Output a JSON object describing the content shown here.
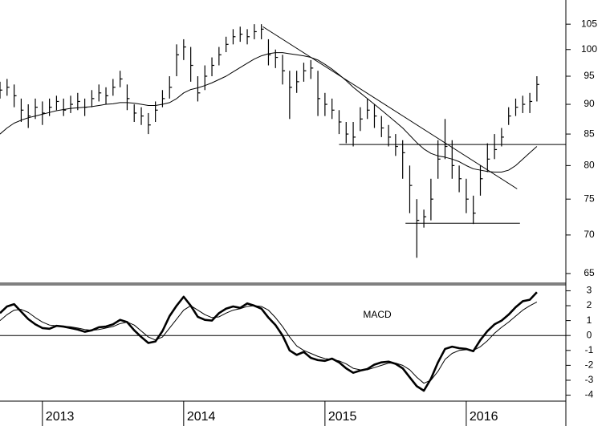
{
  "chart_data": [
    {
      "type": "ohlc",
      "ylog": true,
      "color": "#000000",
      "xlim": [
        2012.7,
        2016.705
      ],
      "ylim": [
        63.8,
        110
      ],
      "yticks": [
        65,
        70,
        75,
        80,
        85,
        90,
        95,
        100,
        105
      ],
      "x": [
        2012.7,
        2012.75,
        2012.8,
        2012.85,
        2012.9,
        2012.95,
        2013.0,
        2013.05,
        2013.1,
        2013.15,
        2013.2,
        2013.25,
        2013.3,
        2013.35,
        2013.4,
        2013.45,
        2013.5,
        2013.55,
        2013.6,
        2013.65,
        2013.7,
        2013.75,
        2013.8,
        2013.85,
        2013.9,
        2013.95,
        2014.0,
        2014.05,
        2014.1,
        2014.15,
        2014.2,
        2014.25,
        2014.3,
        2014.35,
        2014.4,
        2014.45,
        2014.5,
        2014.55,
        2014.6,
        2014.65,
        2014.7,
        2014.75,
        2014.8,
        2014.85,
        2014.9,
        2014.95,
        2015.0,
        2015.05,
        2015.1,
        2015.15,
        2015.2,
        2015.25,
        2015.3,
        2015.35,
        2015.4,
        2015.45,
        2015.5,
        2015.55,
        2015.6,
        2015.65,
        2015.7,
        2015.75,
        2015.8,
        2015.85,
        2015.9,
        2015.95,
        2016.0,
        2016.05,
        2016.1,
        2016.15,
        2016.2,
        2016.25,
        2016.3,
        2016.35,
        2016.4,
        2016.45,
        2016.5
      ],
      "high": [
        94,
        94.5,
        93.5,
        91,
        90,
        91,
        90.5,
        91,
        91.5,
        91,
        91.5,
        92,
        91,
        92.5,
        93.5,
        93,
        94.5,
        96,
        93.5,
        90,
        89.5,
        88.5,
        90.5,
        92.5,
        95,
        101,
        102,
        100.5,
        95,
        97,
        98.5,
        100.5,
        102.5,
        104,
        104.5,
        104,
        105,
        105,
        102,
        100,
        99,
        96,
        96,
        97.5,
        98,
        96,
        92,
        91,
        89,
        87,
        87,
        89.5,
        91,
        90,
        88,
        86.5,
        85,
        84,
        80,
        75,
        73.5,
        78,
        84,
        87.5,
        84,
        80,
        78,
        75.5,
        80,
        83.5,
        85,
        86,
        89.5,
        91,
        91.5,
        92,
        95
      ],
      "low": [
        91,
        91.5,
        89.5,
        87,
        86,
        87.5,
        86.5,
        88,
        89,
        88,
        88.5,
        89,
        88,
        89.5,
        90.5,
        90,
        91.5,
        93,
        89,
        87,
        86.5,
        85,
        87,
        89.5,
        91,
        95,
        98,
        94,
        90.5,
        92.5,
        95,
        97,
        99.5,
        101,
        101.5,
        101,
        102,
        102,
        97,
        96.5,
        93.5,
        87.5,
        92,
        94,
        94.5,
        88,
        88,
        87.5,
        85,
        83.5,
        83,
        85.5,
        87.5,
        86,
        84.5,
        83,
        81.5,
        78,
        73,
        67,
        71,
        72,
        78,
        81,
        78,
        76,
        73,
        71.5,
        75.5,
        79,
        81,
        83,
        86.5,
        88,
        88.5,
        88.5,
        90.5
      ],
      "close": [
        92.5,
        93,
        91.5,
        89,
        88,
        89.5,
        88.5,
        89.5,
        90.5,
        89,
        90,
        90.5,
        89.5,
        91,
        92,
        91.5,
        93,
        94.5,
        91,
        88.5,
        88,
        86.5,
        89,
        91,
        93,
        99,
        100.5,
        97,
        92,
        95,
        97,
        99,
        101,
        102.5,
        103,
        102.5,
        103.5,
        104,
        99,
        98.5,
        96,
        93,
        94,
        96,
        96.5,
        91,
        90,
        89,
        87,
        85,
        84.5,
        87.5,
        89,
        88,
        86,
        84.5,
        83,
        82,
        77,
        72,
        72.5,
        75,
        81,
        83,
        80,
        78,
        75,
        73,
        78,
        81,
        82.5,
        84.5,
        88,
        89.5,
        90,
        90.5,
        93.5
      ],
      "moving_average": [
        85,
        86,
        86.8,
        87.3,
        87.7,
        88,
        88.3,
        88.6,
        88.9,
        89.1,
        89.3,
        89.4,
        89.5,
        89.6,
        89.8,
        90,
        90.1,
        90.3,
        90.3,
        90.2,
        90,
        89.8,
        89.8,
        90,
        90.3,
        91,
        92,
        92.6,
        92.9,
        93.3,
        93.8,
        94.4,
        95,
        95.8,
        96.6,
        97.4,
        98.2,
        98.8,
        99.2,
        99.4,
        99.4,
        99.2,
        99,
        98.8,
        98.5,
        98,
        97.2,
        96.3,
        95.3,
        94.2,
        93,
        92,
        91,
        90,
        89,
        88,
        87,
        86,
        84.8,
        83.6,
        82.6,
        81.9,
        81.5,
        81.3,
        81,
        80.6,
        80,
        79.5,
        79.3,
        79.1,
        79,
        79,
        79.3,
        80,
        81,
        82,
        83
      ],
      "lines": [
        {
          "x": [
            2014.56,
            2016.36
          ],
          "y": [
            104.5,
            76.5
          ]
        },
        {
          "x": [
            2015.1,
            2016.705
          ],
          "y": [
            83.3,
            83.3
          ]
        },
        {
          "x": [
            2015.57,
            2016.38
          ],
          "y": [
            71.6,
            71.6
          ]
        }
      ]
    },
    {
      "type": "line",
      "annotation": "MACD",
      "xlim": [
        2012.7,
        2016.705
      ],
      "ylim": [
        -4.4,
        3.4
      ],
      "yticks": [
        -4,
        -3,
        -2,
        -1,
        0,
        1,
        2,
        3
      ],
      "reference_line": 0,
      "xticks": [
        2013,
        2014,
        2015,
        2016
      ],
      "x": [
        2012.7,
        2012.75,
        2012.8,
        2012.85,
        2012.9,
        2012.95,
        2013.0,
        2013.05,
        2013.1,
        2013.15,
        2013.2,
        2013.25,
        2013.3,
        2013.35,
        2013.4,
        2013.45,
        2013.5,
        2013.55,
        2013.6,
        2013.65,
        2013.7,
        2013.75,
        2013.8,
        2013.85,
        2013.9,
        2013.95,
        2014.0,
        2014.05,
        2014.1,
        2014.15,
        2014.2,
        2014.25,
        2014.3,
        2014.35,
        2014.4,
        2014.45,
        2014.5,
        2014.55,
        2014.6,
        2014.65,
        2014.7,
        2014.75,
        2014.8,
        2014.85,
        2014.9,
        2014.95,
        2015.0,
        2015.05,
        2015.1,
        2015.15,
        2015.2,
        2015.25,
        2015.3,
        2015.35,
        2015.4,
        2015.45,
        2015.5,
        2015.55,
        2015.6,
        2015.65,
        2015.7,
        2015.75,
        2015.8,
        2015.85,
        2015.9,
        2015.95,
        2016.0,
        2016.05,
        2016.1,
        2016.15,
        2016.2,
        2016.25,
        2016.3,
        2016.35,
        2016.4,
        2016.45,
        2016.5
      ],
      "macd": [
        1.5,
        1.95,
        2.1,
        1.6,
        1.1,
        0.75,
        0.5,
        0.45,
        0.65,
        0.6,
        0.5,
        0.4,
        0.25,
        0.35,
        0.55,
        0.6,
        0.75,
        1.05,
        0.9,
        0.35,
        -0.1,
        -0.5,
        -0.4,
        0.3,
        1.3,
        2.0,
        2.6,
        2.0,
        1.25,
        1.05,
        1.0,
        1.5,
        1.8,
        1.95,
        1.85,
        2.15,
        2.0,
        1.8,
        1.2,
        0.7,
        0.0,
        -1.0,
        -1.3,
        -1.1,
        -1.5,
        -1.65,
        -1.7,
        -1.55,
        -1.8,
        -2.2,
        -2.5,
        -2.35,
        -2.25,
        -1.95,
        -1.8,
        -1.75,
        -1.9,
        -2.2,
        -2.8,
        -3.4,
        -3.7,
        -2.9,
        -1.8,
        -0.9,
        -0.75,
        -0.85,
        -0.9,
        -1.05,
        -0.3,
        0.3,
        0.75,
        1.0,
        1.4,
        1.9,
        2.3,
        2.4,
        2.9
      ],
      "signal": [
        1.0,
        1.4,
        1.7,
        1.75,
        1.55,
        1.2,
        0.9,
        0.7,
        0.65,
        0.62,
        0.58,
        0.5,
        0.4,
        0.35,
        0.4,
        0.5,
        0.6,
        0.8,
        0.9,
        0.7,
        0.3,
        -0.1,
        -0.3,
        -0.1,
        0.5,
        1.1,
        1.7,
        2.0,
        1.7,
        1.4,
        1.2,
        1.25,
        1.5,
        1.7,
        1.8,
        1.95,
        2.0,
        1.95,
        1.7,
        1.2,
        0.6,
        -0.1,
        -0.7,
        -1.0,
        -1.2,
        -1.4,
        -1.55,
        -1.6,
        -1.7,
        -1.9,
        -2.2,
        -2.3,
        -2.3,
        -2.15,
        -2.0,
        -1.85,
        -1.85,
        -2.0,
        -2.3,
        -2.8,
        -3.2,
        -3.0,
        -2.4,
        -1.6,
        -1.2,
        -1.0,
        -0.95,
        -1.0,
        -0.75,
        -0.35,
        0.15,
        0.55,
        0.9,
        1.3,
        1.7,
        2.0,
        2.25
      ]
    }
  ]
}
